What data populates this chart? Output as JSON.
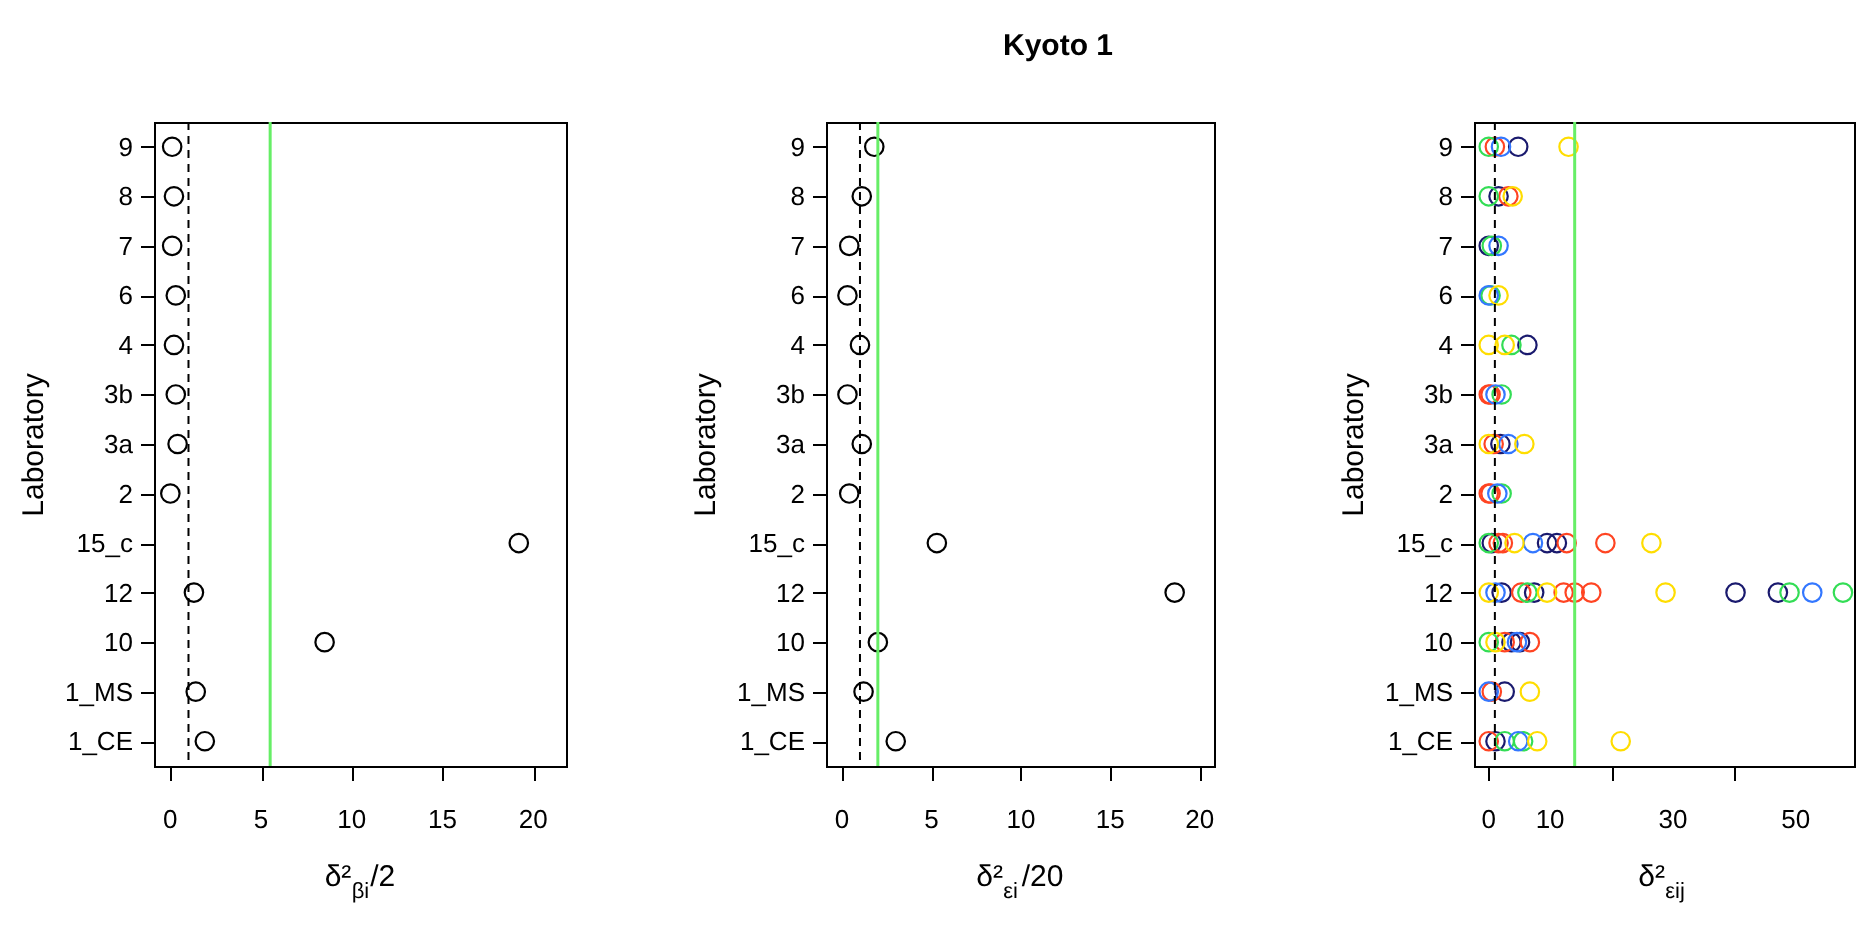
{
  "chart_data": [
    {
      "type": "scatter",
      "orientation": "horizontal",
      "marker": "circle",
      "grid": false,
      "legend": false,
      "ylabel": "Laboratory",
      "xlabel": "δ²$_{βi}$/2",
      "categories": [
        "9",
        "8",
        "7",
        "6",
        "4",
        "3b",
        "3a",
        "2",
        "15_c",
        "12",
        "10",
        "1_MS",
        "1_CE"
      ],
      "xlim": [
        -0.9,
        21.8
      ],
      "xticks": [
        0,
        5,
        10,
        15,
        20
      ],
      "series": [
        {
          "color": "#000000",
          "values": [
            0.1,
            0.2,
            0.1,
            0.3,
            0.2,
            0.3,
            0.4,
            0.0,
            19.2,
            1.3,
            8.5,
            1.4,
            1.9
          ]
        }
      ],
      "ref_lines": [
        {
          "axis": "x",
          "value": 1.0,
          "color": "#000000",
          "line_style": "dashed"
        },
        {
          "axis": "x",
          "value": 5.5,
          "color": "#66ee66",
          "line_style": "solid"
        }
      ]
    },
    {
      "type": "scatter",
      "orientation": "horizontal",
      "marker": "circle",
      "grid": false,
      "legend": false,
      "title": "Kyoto 1",
      "ylabel": "Laboratory",
      "xlabel": "δ²$_{εi}$/20",
      "categories": [
        "9",
        "8",
        "7",
        "6",
        "4",
        "3b",
        "3a",
        "2",
        "15_c",
        "12",
        "10",
        "1_MS",
        "1_CE"
      ],
      "xlim": [
        -0.9,
        20.8
      ],
      "xticks": [
        0,
        5,
        10,
        15,
        20
      ],
      "series": [
        {
          "color": "#000000",
          "values": [
            1.8,
            1.1,
            0.4,
            0.3,
            1.0,
            0.3,
            1.1,
            0.4,
            5.3,
            18.6,
            2.0,
            1.2,
            3.0
          ]
        }
      ],
      "ref_lines": [
        {
          "axis": "x",
          "value": 1.0,
          "color": "#000000",
          "line_style": "dashed"
        },
        {
          "axis": "x",
          "value": 2.0,
          "color": "#66ee66",
          "line_style": "solid"
        }
      ]
    },
    {
      "type": "scatter",
      "orientation": "horizontal",
      "marker": "circle",
      "grid": false,
      "legend": false,
      "ylabel": "Laboratory",
      "xlabel": "δ²$_{εij}$",
      "categories": [
        "9",
        "8",
        "7",
        "6",
        "4",
        "3b",
        "3a",
        "2",
        "15_c",
        "12",
        "10",
        "1_MS",
        "1_CE"
      ],
      "xlim": [
        -2.4,
        59.5
      ],
      "xticks": [
        0,
        10,
        {
          "value": 20,
          "label": null
        },
        30,
        {
          "value": 40,
          "label": null
        },
        50
      ],
      "series": [
        {
          "color": "#1a1a6e",
          "values": [
            4.8,
            1.6,
            0,
            null,
            6.3,
            null,
            1.9,
            null,
            0.5,
            2.1,
            3.7,
            2.6,
            1.1
          ]
        },
        {
          "color": "#1a1a6e",
          "values": [
            null,
            null,
            null,
            null,
            null,
            null,
            null,
            null,
            9.5,
            7.4,
            5.1,
            null,
            null
          ]
        },
        {
          "color": "#1a1a6e",
          "values": [
            null,
            null,
            null,
            null,
            null,
            null,
            null,
            null,
            11.1,
            40.2,
            null,
            null,
            null
          ]
        },
        {
          "color": "#1a1a6e",
          "values": [
            null,
            null,
            null,
            null,
            null,
            null,
            null,
            null,
            null,
            47.1,
            null,
            null,
            null
          ]
        },
        {
          "color": "#ff4422",
          "values": [
            1.0,
            3.2,
            null,
            null,
            null,
            0,
            0.8,
            0,
            1.6,
            5.3,
            2.6,
            0.5,
            0
          ]
        },
        {
          "color": "#ff4422",
          "values": [
            null,
            null,
            null,
            null,
            null,
            0.3,
            null,
            0.3,
            2.3,
            12.2,
            6.7,
            null,
            null
          ]
        },
        {
          "color": "#ff4422",
          "values": [
            null,
            null,
            null,
            null,
            null,
            null,
            null,
            null,
            12.7,
            14.0,
            null,
            null,
            null
          ]
        },
        {
          "color": "#ff4422",
          "values": [
            null,
            null,
            null,
            null,
            null,
            null,
            null,
            null,
            19.0,
            16.7,
            null,
            null,
            null
          ]
        },
        {
          "color": "#33dd55",
          "values": [
            0,
            0,
            0.5,
            0.3,
            3.7,
            2.1,
            null,
            2.1,
            0,
            6.3,
            0,
            null,
            2.6
          ]
        },
        {
          "color": "#33dd55",
          "values": [
            null,
            null,
            null,
            null,
            null,
            null,
            null,
            null,
            null,
            49.0,
            null,
            null,
            5.6
          ]
        },
        {
          "color": "#33dd55",
          "values": [
            null,
            null,
            null,
            null,
            null,
            null,
            null,
            null,
            null,
            57.7,
            null,
            null,
            null
          ]
        },
        {
          "color": "#3377ff",
          "values": [
            2.0,
            null,
            1.6,
            0,
            null,
            1.1,
            3.2,
            1.4,
            7.2,
            1.1,
            4.6,
            0,
            4.8
          ]
        },
        {
          "color": "#3377ff",
          "values": [
            null,
            null,
            null,
            null,
            null,
            null,
            null,
            null,
            null,
            52.7,
            null,
            null,
            null
          ]
        },
        {
          "color": "#ffdd00",
          "values": [
            13.0,
            3.9,
            null,
            1.6,
            0,
            null,
            0,
            null,
            4.2,
            0,
            1.1,
            6.7,
            7.9
          ]
        },
        {
          "color": "#ffdd00",
          "values": [
            null,
            null,
            null,
            null,
            2.6,
            null,
            5.8,
            null,
            26.5,
            9.5,
            null,
            null,
            21.5
          ]
        },
        {
          "color": "#ffdd00",
          "values": [
            null,
            null,
            null,
            null,
            null,
            null,
            null,
            null,
            null,
            28.8,
            null,
            null,
            null
          ]
        }
      ],
      "ref_lines": [
        {
          "axis": "x",
          "value": 1.0,
          "color": "#000000",
          "line_style": "dashed"
        },
        {
          "axis": "x",
          "value": 14.0,
          "color": "#66ee66",
          "line_style": "solid"
        }
      ]
    }
  ]
}
